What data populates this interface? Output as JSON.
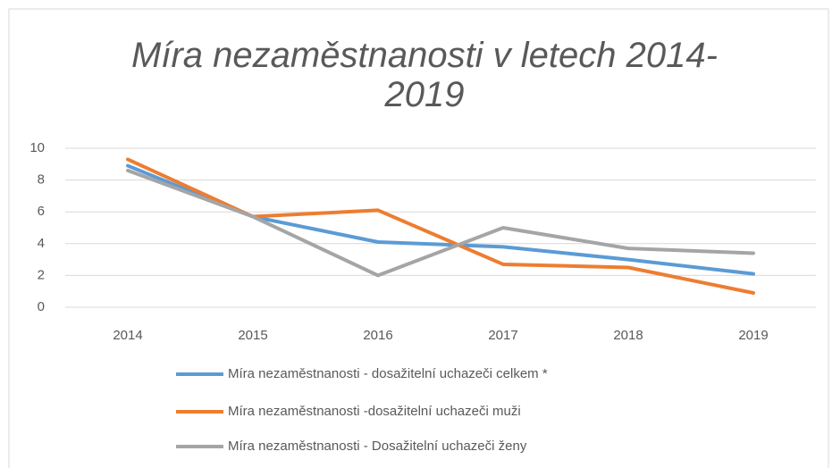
{
  "chart_data": {
    "type": "line",
    "title": "Míra nezaměstnanosti v letech 2014-2019",
    "categories": [
      "2014",
      "2015",
      "2016",
      "2017",
      "2018",
      "2019"
    ],
    "series": [
      {
        "name": "Míra nezaměstnanosti - dosažitelní uchazeči celkem *",
        "color": "#5b9bd5",
        "values": [
          8.9,
          5.7,
          4.1,
          3.8,
          3.0,
          2.1
        ]
      },
      {
        "name": "Míra nezaměstnanosti -dosažitelní uchazeči muži",
        "color": "#ed7d31",
        "values": [
          9.3,
          5.7,
          6.1,
          2.7,
          2.5,
          0.9
        ]
      },
      {
        "name": "Míra nezaměstnanosti - Dosažitelní uchazeči ženy",
        "color": "#a5a5a5",
        "values": [
          8.6,
          5.7,
          2.0,
          5.0,
          3.7,
          3.4
        ]
      }
    ],
    "ylim": [
      0,
      10
    ],
    "yticks": [
      0,
      2,
      4,
      6,
      8,
      10
    ],
    "grid": true,
    "legend": "bottom"
  }
}
